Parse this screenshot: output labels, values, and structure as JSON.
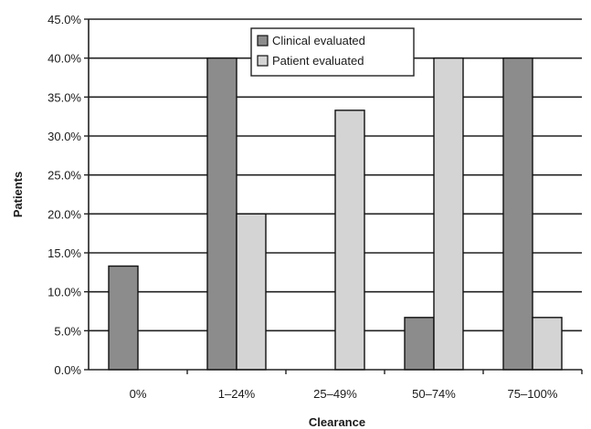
{
  "chart_data": {
    "type": "bar",
    "categories": [
      "0%",
      "1–24%",
      "25–49%",
      "50–74%",
      "75–100%"
    ],
    "series": [
      {
        "name": "Clinical evaluated",
        "values": [
          13.3,
          40.0,
          0.0,
          6.7,
          40.0
        ],
        "color": "#8c8c8c"
      },
      {
        "name": "Patient evaluated",
        "values": [
          0.0,
          20.0,
          33.3,
          40.0,
          6.7
        ],
        "color": "#d4d4d4"
      }
    ],
    "xlabel": "Clearance",
    "ylabel": "Patients",
    "ylim": [
      0,
      45
    ],
    "yticks": [
      0,
      5,
      10,
      15,
      20,
      25,
      30,
      35,
      40,
      45
    ],
    "ytick_labels": [
      "0.0%",
      "5.0%",
      "10.0%",
      "15.0%",
      "20.0%",
      "25.0%",
      "30.0%",
      "35.0%",
      "40.0%",
      "45.0%"
    ],
    "grid": true,
    "legend_position": "top-center",
    "plot_background": "#ffffff"
  }
}
